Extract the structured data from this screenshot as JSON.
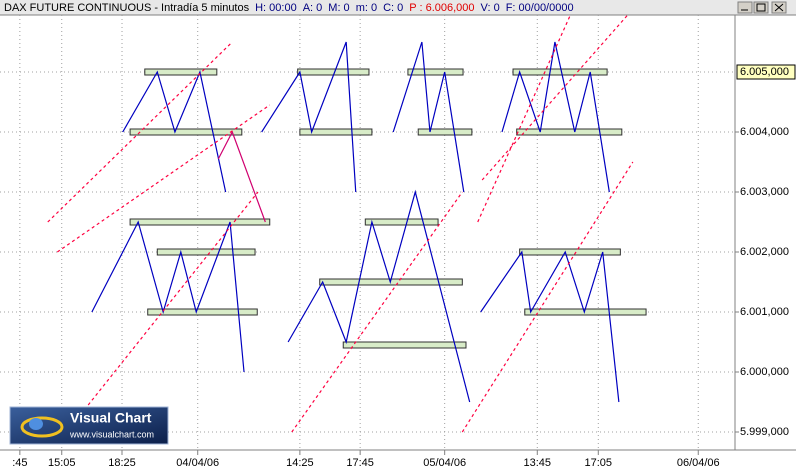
{
  "header": {
    "title": "DAX FUTURE CONTINUOUS - Intradía 5 minutos",
    "fields": [
      "H: 00:00",
      "A: 0",
      "M: 0",
      "m: 0",
      "C: 0",
      "P : 6.006,000",
      "V: 0",
      "F: 00/00/0000"
    ]
  },
  "logo": {
    "name": "Visual Chart",
    "url": "www.visualchart.com"
  },
  "chart_data": {
    "type": "line",
    "xlim": [
      0,
      100
    ],
    "ylim": [
      5998700,
      6005950
    ],
    "grid": true,
    "xticks": [
      {
        "value": 2.7,
        "label": ":45"
      },
      {
        "value": 8.4,
        "label": "15:05"
      },
      {
        "value": 16.6,
        "label": "18:25"
      },
      {
        "value": 26.9,
        "label": "04/04/06"
      },
      {
        "value": 40.8,
        "label": "14:25"
      },
      {
        "value": 49.0,
        "label": "17:45"
      },
      {
        "value": 60.5,
        "label": "05/04/06"
      },
      {
        "value": 73.1,
        "label": "13:45"
      },
      {
        "value": 81.4,
        "label": "17:05"
      },
      {
        "value": 95.0,
        "label": "06/04/06"
      }
    ],
    "yticks": [
      {
        "value": 6004000,
        "label": "6.004,000"
      },
      {
        "value": 6003000,
        "label": "6.003,000"
      },
      {
        "value": 6002000,
        "label": "6.002,000"
      },
      {
        "value": 6001000,
        "label": "6.001,000"
      },
      {
        "value": 6000000,
        "label": "6.000,000"
      },
      {
        "value": 5999000,
        "label": "5.999,000"
      }
    ],
    "last_price": {
      "value": 6005000,
      "label": "6.005,000"
    },
    "series": [
      {
        "color": "#0000c0",
        "dashed": false,
        "x": [
          16.7,
          21.4,
          23.8,
          27.2,
          30.7,
          null,
          35.6,
          40.8,
          42.4,
          47.1,
          48.4,
          null,
          53.5,
          57.4,
          58.5,
          60.5,
          63.1,
          null,
          68.3,
          70.7,
          73.5,
          75.5,
          78.2,
          80.3,
          82.9,
          null,
          12.5,
          18.8,
          22.2,
          24.6,
          26.7,
          31.3,
          33.2,
          null,
          39.2,
          43.9,
          47.1,
          50.6,
          53.1,
          56.5,
          63.9,
          null,
          65.4,
          71.0,
          72.2,
          76.9,
          79.5,
          82.0,
          84.2
        ],
        "values": [
          6004000,
          6005000,
          6004000,
          6005000,
          6003000,
          null,
          6004000,
          6005000,
          6004000,
          6005500,
          6003000,
          null,
          6004000,
          6005500,
          6004000,
          6005000,
          6003000,
          null,
          6004000,
          6005000,
          6004000,
          6005500,
          6004000,
          6005000,
          6003000,
          null,
          6001000,
          6002500,
          6001000,
          6002000,
          6001000,
          6002500,
          6000000,
          null,
          6000500,
          6001500,
          6000500,
          6002500,
          6001500,
          6003000,
          5999500,
          null,
          6001000,
          6002000,
          6001000,
          6002000,
          6001000,
          6002000,
          5999500
        ]
      },
      {
        "color": "#d0006f",
        "dashed": false,
        "x": [
          29.7,
          31.6,
          36.1
        ],
        "values": [
          6003550,
          6004000,
          6002500
        ]
      },
      {
        "color": "#ff0040",
        "dashed": true,
        "x": [
          6.5,
          31.6,
          null,
          7.8,
          36.7,
          null,
          12.0,
          35.1,
          null,
          39.7,
          62.9,
          null,
          65.0,
          77.6,
          null,
          65.6,
          85.4,
          null,
          62.9,
          86.1
        ],
        "values": [
          6002500,
          6005500,
          null,
          6002000,
          6004450,
          null,
          5999450,
          6003000,
          null,
          5999000,
          6003000,
          null,
          6002500,
          6005950,
          null,
          6003200,
          6005950,
          null,
          5999000,
          6003500
        ]
      }
    ],
    "levels": [
      {
        "x": [
          19.7,
          29.5
        ],
        "value": 6005000
      },
      {
        "x": [
          17.7,
          32.9
        ],
        "value": 6004000
      },
      {
        "x": [
          40.5,
          50.2
        ],
        "value": 6005000
      },
      {
        "x": [
          40.8,
          50.6
        ],
        "value": 6004000
      },
      {
        "x": [
          55.5,
          63.0
        ],
        "value": 6005000
      },
      {
        "x": [
          56.9,
          64.2
        ],
        "value": 6004000
      },
      {
        "x": [
          69.8,
          82.6
        ],
        "value": 6005000
      },
      {
        "x": [
          70.3,
          84.6
        ],
        "value": 6004000
      },
      {
        "x": [
          17.7,
          36.7
        ],
        "value": 6002500
      },
      {
        "x": [
          21.4,
          34.7
        ],
        "value": 6002000
      },
      {
        "x": [
          20.1,
          35.0
        ],
        "value": 6001000
      },
      {
        "x": [
          49.7,
          59.6
        ],
        "value": 6002500
      },
      {
        "x": [
          43.5,
          62.9
        ],
        "value": 6001500
      },
      {
        "x": [
          46.7,
          63.4
        ],
        "value": 6000450
      },
      {
        "x": [
          70.7,
          84.4
        ],
        "value": 6002000
      },
      {
        "x": [
          71.4,
          87.9
        ],
        "value": 6001000
      }
    ]
  }
}
